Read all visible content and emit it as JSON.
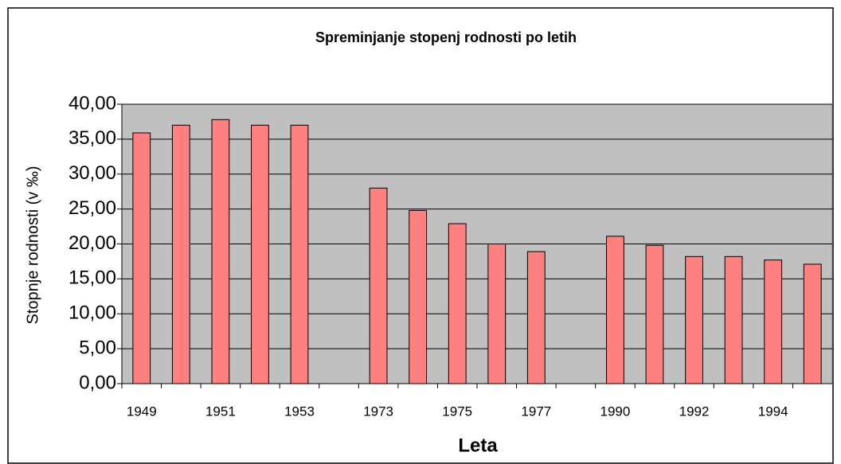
{
  "chart_data": {
    "type": "bar",
    "title": "Spreminjanje stopenj rodnosti po letih",
    "x_label": "Leta",
    "y_label": "Stopnje rodnosti (v ‰)",
    "categories": [
      "1949",
      null,
      "1951",
      null,
      "1953",
      null,
      "1973",
      null,
      "1975",
      null,
      "1977",
      null,
      "1990",
      null,
      "1992",
      null,
      "1994",
      null
    ],
    "values": [
      35.9,
      37.0,
      37.8,
      37.0,
      37.0,
      null,
      28.0,
      24.8,
      22.9,
      20.0,
      18.9,
      null,
      21.1,
      19.8,
      18.2,
      18.2,
      17.7,
      17.1
    ],
    "color": "#ff8080",
    "ylim": [
      0,
      40
    ],
    "yticks": [
      {
        "value": 0,
        "label": "0,00"
      },
      {
        "value": 5,
        "label": "5,00"
      },
      {
        "value": 10,
        "label": "10,00"
      },
      {
        "value": 15,
        "label": "15,00"
      },
      {
        "value": 20,
        "label": "20,00"
      },
      {
        "value": 25,
        "label": "25,00"
      },
      {
        "value": 30,
        "label": "30,00"
      },
      {
        "value": 35,
        "label": "35,00"
      },
      {
        "value": 40,
        "label": "40,00"
      }
    ],
    "grid": true
  }
}
